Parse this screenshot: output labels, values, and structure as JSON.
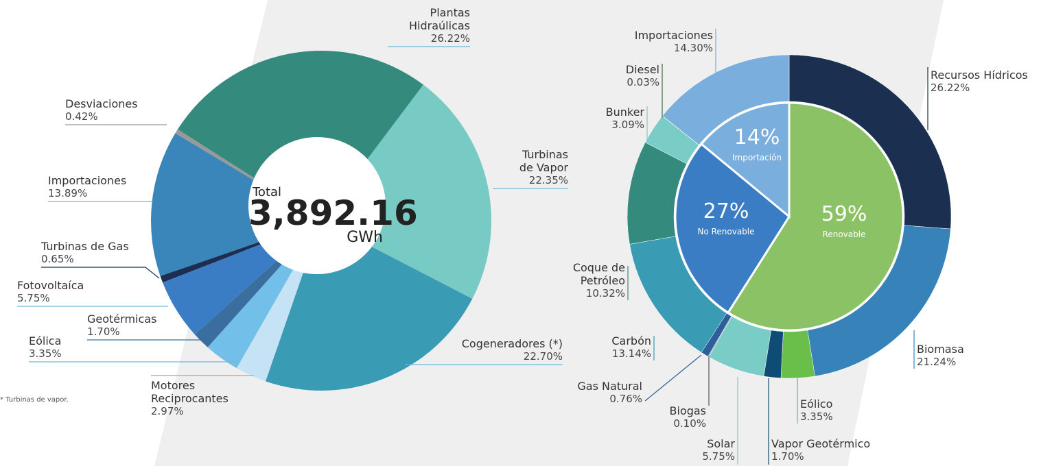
{
  "chart_data": [
    {
      "type": "donut",
      "categories": [
        "Plantas Hidraúlicas",
        "Turbinas de Vapor",
        "Cogeneradores (*)",
        "Motores Reciprocantes",
        "Eólica",
        "Geotérmicas",
        "Fotovoltaíca",
        "Turbinas de Gas",
        "Importaciones",
        "Desviaciones"
      ],
      "values": [
        26.22,
        22.35,
        22.7,
        2.97,
        3.35,
        1.7,
        5.75,
        0.65,
        13.89,
        0.42
      ],
      "value_labels": [
        "26.22%",
        "22.35%",
        "22.70%",
        "2.97%",
        "3.35%",
        "1.70%",
        "5.75%",
        "0.65%",
        "13.89%",
        "0.42%"
      ],
      "colors": [
        "#358a7e",
        "#78cbc4",
        "#3a9bb5",
        "#c5e3f5",
        "#72bfea",
        "#3a6e9e",
        "#3b7dc4",
        "#1c2f52",
        "#3a86bb",
        "#999999"
      ],
      "total_label": "Total",
      "total": "3,892.16",
      "unit": "GWh",
      "note": "* Turbinas de vapor."
    },
    {
      "type": "nested_donut",
      "outer": {
        "categories": [
          "Recursos Hídricos",
          "Biomasa",
          "Eólico",
          "Vapor Geotérmico",
          "Solar",
          "Biogas",
          "Gas Natural",
          "Carbón",
          "Coque de Petróleo",
          "Bunker",
          "Diesel",
          "Importaciones"
        ],
        "values": [
          26.22,
          21.24,
          3.35,
          1.7,
          5.75,
          0.1,
          0.76,
          13.14,
          10.32,
          3.09,
          0.03,
          14.3
        ],
        "value_labels": [
          "26.22%",
          "21.24%",
          "3.35%",
          "1.70%",
          "5.75%",
          "0.10%",
          "0.76%",
          "13.14%",
          "10.32%",
          "3.09%",
          "0.03%",
          "14.30%"
        ],
        "colors": [
          "#1b2f50",
          "#3783b9",
          "#6abf4b",
          "#0f4c75",
          "#79cdc6",
          "#99aab0",
          "#2f5f9a",
          "#3a9bb5",
          "#358a7e",
          "#79cdc6",
          "#555555",
          "#7aaedd"
        ]
      },
      "inner": {
        "categories": [
          "Renovable",
          "No Renovable",
          "Importación"
        ],
        "values": [
          59,
          27,
          14
        ],
        "value_labels": [
          "59%",
          "27%",
          "14%"
        ],
        "colors": [
          "#8bc265",
          "#3b7dc4",
          "#7aaedd"
        ]
      }
    }
  ]
}
